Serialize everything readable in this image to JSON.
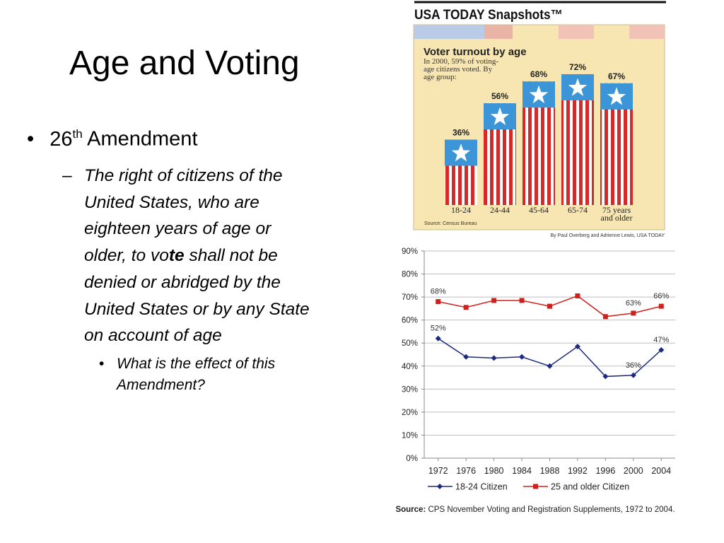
{
  "slide": {
    "title": "Age and Voting",
    "bullet": {
      "number": "26",
      "superscript": "th",
      "text": "Amendment"
    },
    "sub_bullet": {
      "before": "The right of citizens of the United States, who are eighteen years of age or older, to vo",
      "bold": "te",
      "after": " shall not be denied or abridged by the United States or by any State on account of age"
    },
    "sub_sub_bullet": "What is the effect of this Amendment?"
  },
  "chart_data": [
    {
      "type": "bar",
      "header": "USA TODAY Snapshots™",
      "title": "Voter turnout by age",
      "subtitle": "In 2000, 59% of voting-age citizens voted. By age group:",
      "categories": [
        "18-24",
        "24-44",
        "45-64",
        "65-74",
        "75 years and older"
      ],
      "values": [
        36,
        56,
        68,
        72,
        67
      ],
      "value_labels": [
        "36%",
        "56%",
        "68%",
        "72%",
        "67%"
      ],
      "source": "Source: Census Bureau",
      "credit": "By Paul Overberg and Adrienne Lewis, USA TODAY"
    },
    {
      "type": "line",
      "x": [
        1972,
        1976,
        1980,
        1984,
        1988,
        1992,
        1996,
        2000,
        2004
      ],
      "xlim": [
        1970,
        2006
      ],
      "xticks": [
        1972,
        1976,
        1980,
        1984,
        1988,
        1992,
        1996,
        2000,
        2004
      ],
      "ylim": [
        0,
        90
      ],
      "yticks": [
        {
          "value": 0,
          "label": "0%"
        },
        {
          "value": 10,
          "label": "10%"
        },
        {
          "value": 20,
          "label": "20%"
        },
        {
          "value": 30,
          "label": "30%"
        },
        {
          "value": 40,
          "label": "40%"
        },
        {
          "value": 50,
          "label": "50%"
        },
        {
          "value": 60,
          "label": "60%"
        },
        {
          "value": 70,
          "label": "70%"
        },
        {
          "value": 80,
          "label": "80%"
        },
        {
          "value": 90,
          "label": "90%"
        }
      ],
      "grid": true,
      "series": [
        {
          "name": "18-24 Citizen",
          "color": "#1c2a80",
          "marker": "diamond",
          "values": [
            52,
            44,
            43.5,
            44,
            40,
            48.5,
            35.5,
            36,
            47
          ],
          "value_labels": [
            "52%",
            null,
            null,
            null,
            null,
            null,
            null,
            "36%",
            "47%"
          ]
        },
        {
          "name": "25 and older Citizen",
          "color": "#d0201c",
          "marker": "square",
          "values": [
            68,
            65.5,
            68.5,
            68.5,
            66,
            70.5,
            61.5,
            63,
            66
          ],
          "value_labels": [
            "68%",
            null,
            null,
            null,
            null,
            null,
            null,
            "63%",
            "66%"
          ]
        }
      ],
      "source": {
        "label": "Source:",
        "text": "CPS November Voting and Registration Supplements, 1972 to 2004."
      }
    }
  ]
}
